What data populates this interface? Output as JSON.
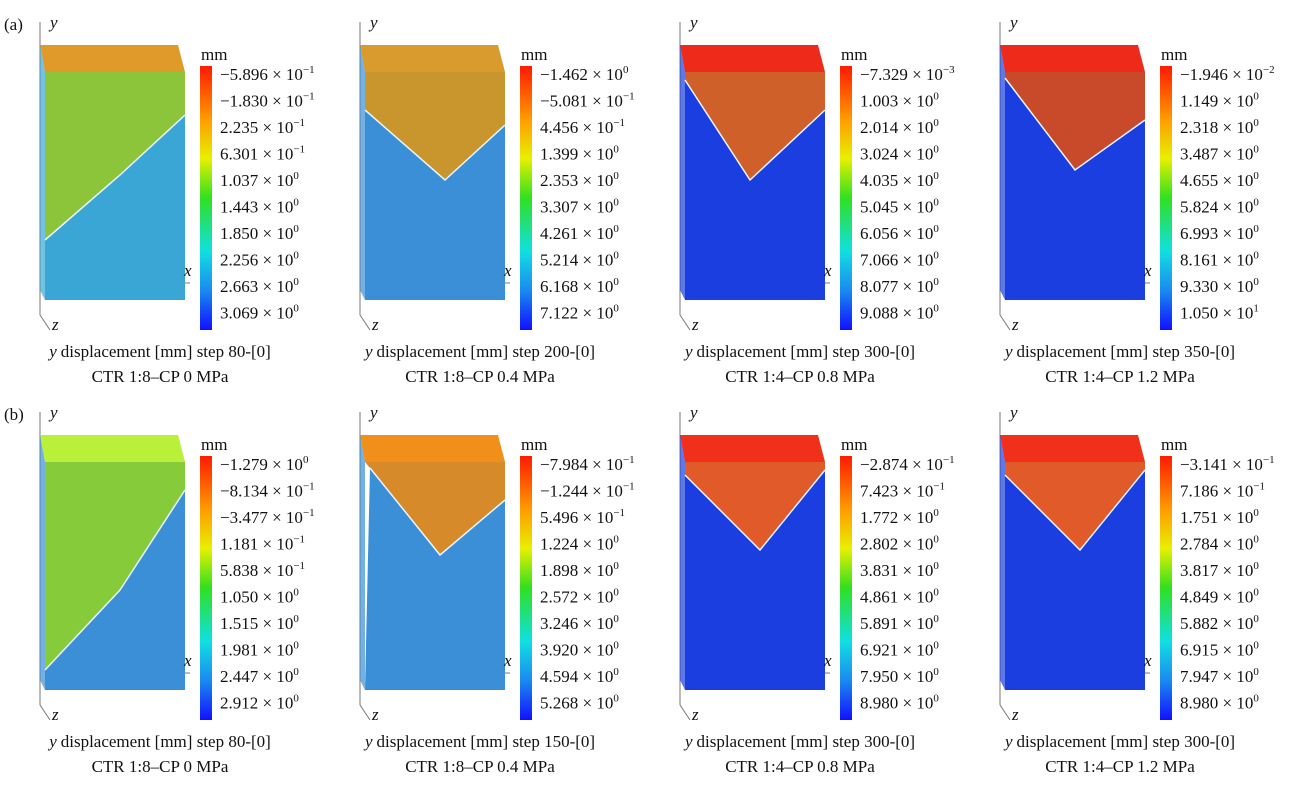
{
  "rows": [
    {
      "label": "(a)",
      "panels": [
        {
          "y_axis": "y",
          "x_axis": "x",
          "z_axis": "z",
          "unit": "mm",
          "colorbar": [
            {
              "base": "−5.896 × 10",
              "exp": "−1"
            },
            {
              "base": "−1.830 × 10",
              "exp": "−1"
            },
            {
              "base": "2.235 × 10",
              "exp": "−1"
            },
            {
              "base": "6.301 × 10",
              "exp": "−1"
            },
            {
              "base": "1.037 × 10",
              "exp": "0"
            },
            {
              "base": "1.443 × 10",
              "exp": "0"
            },
            {
              "base": "1.850 × 10",
              "exp": "0"
            },
            {
              "base": "2.256 × 10",
              "exp": "0"
            },
            {
              "base": "2.663 × 10",
              "exp": "0"
            },
            {
              "base": "3.069 × 10",
              "exp": "0"
            }
          ],
          "caption_var": "y",
          "caption": "displacement [mm] step 80-[0]",
          "condition": "CTR 1:8–CP 0 MPa"
        },
        {
          "y_axis": "y",
          "x_axis": "x",
          "z_axis": "z",
          "unit": "mm",
          "colorbar": [
            {
              "base": "−1.462 × 10",
              "exp": "0"
            },
            {
              "base": "−5.081 × 10",
              "exp": "−1"
            },
            {
              "base": "4.456 × 10",
              "exp": "−1"
            },
            {
              "base": "1.399 × 10",
              "exp": "0"
            },
            {
              "base": "2.353 × 10",
              "exp": "0"
            },
            {
              "base": "3.307 × 10",
              "exp": "0"
            },
            {
              "base": "4.261 × 10",
              "exp": "0"
            },
            {
              "base": "5.214 × 10",
              "exp": "0"
            },
            {
              "base": "6.168 × 10",
              "exp": "0"
            },
            {
              "base": "7.122 × 10",
              "exp": "0"
            }
          ],
          "caption_var": "y",
          "caption": "displacement [mm] step 200-[0]",
          "condition": "CTR 1:8–CP 0.4 MPa"
        },
        {
          "y_axis": "y",
          "x_axis": "x",
          "z_axis": "z",
          "unit": "mm",
          "colorbar": [
            {
              "base": "−7.329 × 10",
              "exp": "−3"
            },
            {
              "base": "1.003 × 10",
              "exp": "0"
            },
            {
              "base": "2.014 × 10",
              "exp": "0"
            },
            {
              "base": "3.024 × 10",
              "exp": "0"
            },
            {
              "base": "4.035 × 10",
              "exp": "0"
            },
            {
              "base": "5.045 × 10",
              "exp": "0"
            },
            {
              "base": "6.056 × 10",
              "exp": "0"
            },
            {
              "base": "7.066 × 10",
              "exp": "0"
            },
            {
              "base": "8.077 × 10",
              "exp": "0"
            },
            {
              "base": "9.088 × 10",
              "exp": "0"
            }
          ],
          "caption_var": "y",
          "caption": "displacement [mm] step 300-[0]",
          "condition": "CTR 1:4–CP 0.8 MPa"
        },
        {
          "y_axis": "y",
          "x_axis": "x",
          "z_axis": "z",
          "unit": "mm",
          "colorbar": [
            {
              "base": "−1.946 × 10",
              "exp": "−2"
            },
            {
              "base": "1.149 × 10",
              "exp": "0"
            },
            {
              "base": "2.318 × 10",
              "exp": "0"
            },
            {
              "base": "3.487 × 10",
              "exp": "0"
            },
            {
              "base": "4.655 × 10",
              "exp": "0"
            },
            {
              "base": "5.824 × 10",
              "exp": "0"
            },
            {
              "base": "6.993 × 10",
              "exp": "0"
            },
            {
              "base": "8.161 × 10",
              "exp": "0"
            },
            {
              "base": "9.330 × 10",
              "exp": "0"
            },
            {
              "base": "1.050 × 10",
              "exp": "1"
            }
          ],
          "caption_var": "y",
          "caption": "displacement [mm] step 350-[0]",
          "condition": "CTR 1:4–CP 1.2 MPa"
        }
      ]
    },
    {
      "label": "(b)",
      "panels": [
        {
          "y_axis": "y",
          "x_axis": "x",
          "z_axis": "z",
          "unit": "mm",
          "colorbar": [
            {
              "base": "−1.279 × 10",
              "exp": "0"
            },
            {
              "base": "−8.134 × 10",
              "exp": "−1"
            },
            {
              "base": "−3.477 × 10",
              "exp": "−1"
            },
            {
              "base": "1.181 × 10",
              "exp": "−1"
            },
            {
              "base": "5.838 × 10",
              "exp": "−1"
            },
            {
              "base": "1.050 × 10",
              "exp": "0"
            },
            {
              "base": "1.515 × 10",
              "exp": "0"
            },
            {
              "base": "1.981 × 10",
              "exp": "0"
            },
            {
              "base": "2.447 × 10",
              "exp": "0"
            },
            {
              "base": "2.912 × 10",
              "exp": "0"
            }
          ],
          "caption_var": "y",
          "caption": "displacement [mm] step 80-[0]",
          "condition": "CTR 1:8–CP 0 MPa"
        },
        {
          "y_axis": "y",
          "x_axis": "x",
          "z_axis": "z",
          "unit": "mm",
          "colorbar": [
            {
              "base": "−7.984 × 10",
              "exp": "−1"
            },
            {
              "base": "−1.244 × 10",
              "exp": "−1"
            },
            {
              "base": "5.496 × 10",
              "exp": "−1"
            },
            {
              "base": "1.224 × 10",
              "exp": "0"
            },
            {
              "base": "1.898 × 10",
              "exp": "0"
            },
            {
              "base": "2.572 × 10",
              "exp": "0"
            },
            {
              "base": "3.246 × 10",
              "exp": "0"
            },
            {
              "base": "3.920 × 10",
              "exp": "0"
            },
            {
              "base": "4.594 × 10",
              "exp": "0"
            },
            {
              "base": "5.268 × 10",
              "exp": "0"
            }
          ],
          "caption_var": "y",
          "caption": "displacement [mm] step 150-[0]",
          "condition": "CTR 1:8–CP 0.4 MPa"
        },
        {
          "y_axis": "y",
          "x_axis": "x",
          "z_axis": "z",
          "unit": "mm",
          "colorbar": [
            {
              "base": "−2.874 × 10",
              "exp": "−1"
            },
            {
              "base": "7.423 × 10",
              "exp": "−1"
            },
            {
              "base": "1.772 × 10",
              "exp": "0"
            },
            {
              "base": "2.802 × 10",
              "exp": "0"
            },
            {
              "base": "3.831 × 10",
              "exp": "0"
            },
            {
              "base": "4.861 × 10",
              "exp": "0"
            },
            {
              "base": "5.891 × 10",
              "exp": "0"
            },
            {
              "base": "6.921 × 10",
              "exp": "0"
            },
            {
              "base": "7.950 × 10",
              "exp": "0"
            },
            {
              "base": "8.980 × 10",
              "exp": "0"
            }
          ],
          "caption_var": "y",
          "caption": "displacement [mm] step 300-[0]",
          "condition": "CTR 1:4–CP 0.8 MPa"
        },
        {
          "y_axis": "y",
          "x_axis": "x",
          "z_axis": "z",
          "unit": "mm",
          "colorbar": [
            {
              "base": "−3.141 × 10",
              "exp": "−1"
            },
            {
              "base": "7.186 × 10",
              "exp": "−1"
            },
            {
              "base": "1.751 × 10",
              "exp": "0"
            },
            {
              "base": "2.784 × 10",
              "exp": "0"
            },
            {
              "base": "3.817 × 10",
              "exp": "0"
            },
            {
              "base": "4.849 × 10",
              "exp": "0"
            },
            {
              "base": "5.882 × 10",
              "exp": "0"
            },
            {
              "base": "6.915 × 10",
              "exp": "0"
            },
            {
              "base": "7.947 × 10",
              "exp": "0"
            },
            {
              "base": "8.980 × 10",
              "exp": "0"
            }
          ],
          "caption_var": "y",
          "caption": "displacement [mm] step 300-[0]",
          "condition": "CTR 1:4–CP 1.2 MPa"
        }
      ]
    }
  ]
}
